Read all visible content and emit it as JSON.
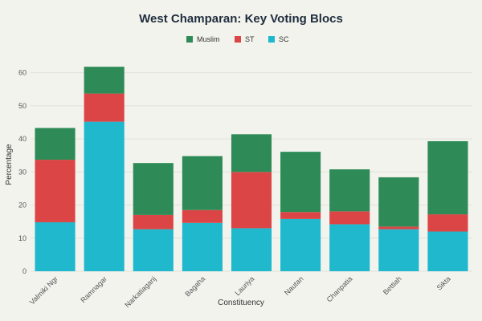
{
  "chart_data": {
    "type": "bar",
    "stacked": true,
    "title": "West Champaran: Key Voting Blocs",
    "xlabel": "Constituency",
    "ylabel": "Percentage",
    "ylim": [
      0,
      65
    ],
    "yticks": [
      0,
      10,
      20,
      30,
      40,
      50,
      60
    ],
    "grid": true,
    "legend_position": "top-center",
    "categories": [
      "Valmiki Ngr",
      "Ramnagar",
      "Narkatiaganj",
      "Bagaha",
      "Lauriya",
      "Nautan",
      "Chanpatia",
      "Bettiah",
      "Sikta"
    ],
    "series": [
      {
        "name": "SC",
        "color": "#1fb8cd",
        "values": [
          14.8,
          45.2,
          12.7,
          14.6,
          13.0,
          15.8,
          14.2,
          12.7,
          12.0
        ]
      },
      {
        "name": "ST",
        "color": "#db4545",
        "values": [
          18.9,
          8.5,
          4.3,
          3.9,
          17.0,
          2.1,
          3.9,
          0.8,
          5.2
        ]
      },
      {
        "name": "Muslim",
        "color": "#2e8b57",
        "values": [
          9.6,
          8.1,
          15.7,
          16.3,
          11.4,
          18.2,
          12.7,
          14.9,
          22.1
        ]
      }
    ],
    "legend_order": [
      "Muslim",
      "ST",
      "SC"
    ]
  }
}
